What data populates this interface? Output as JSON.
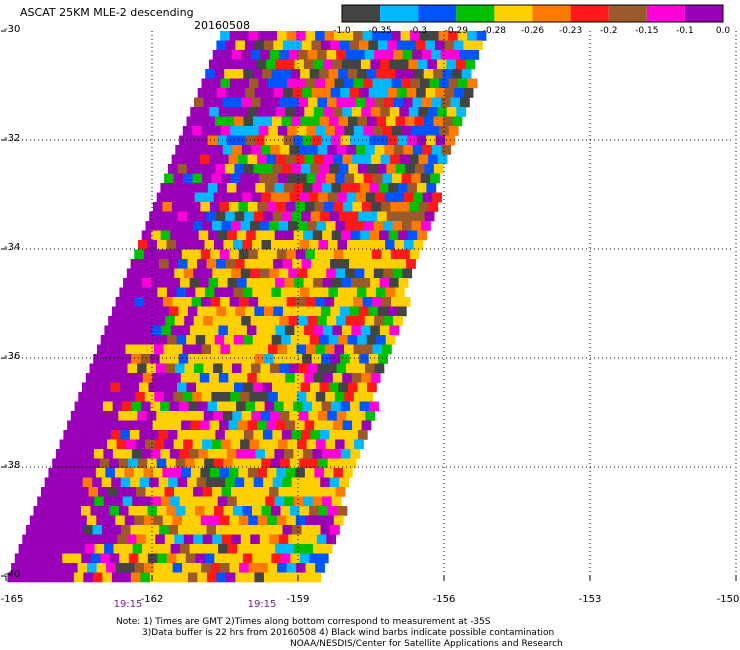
{
  "header": {
    "title": "ASCAT 25KM MLE-2 descending",
    "date": "20160508"
  },
  "colorbar": {
    "segments": [
      "#444444",
      "#00b8ff",
      "#0055ff",
      "#00c000",
      "#ffd000",
      "#ff7a00",
      "#ff1a1a",
      "#9c5a2a",
      "#ff00d8",
      "#9900b8"
    ],
    "tick_labels": [
      "-1.0",
      "-0.35",
      "-0.3",
      "-0.29",
      "-0.28",
      "-0.26",
      "-0.23",
      "-0.2",
      "-0.15",
      "-0.1",
      "0.0"
    ]
  },
  "axes": {
    "lat_labels": [
      "-30",
      "-32",
      "-34",
      "-36",
      "-38",
      "-40"
    ],
    "lon_labels": [
      "-165",
      "-162",
      "-159",
      "-156",
      "-153",
      "-150"
    ],
    "time_labels": [
      "19:15",
      "19:15"
    ]
  },
  "notes": {
    "line1": "Note: 1) Times are GMT 2)Times along bottom correspond to measurement at -35S",
    "line2": "3)Data buffer is 22 hrs from 20160508 4) Black wind barbs indicate possible contamination",
    "line3": "NOAA/NESDIS/Center for Satellite Applications and Research"
  },
  "map_data": {
    "swath_corners_deg": {
      "top_left": [
        -160.6,
        -30.0
      ],
      "top_right": [
        -155.2,
        -30.0
      ],
      "bottom_right": [
        -158.6,
        -40.0
      ],
      "bottom_left": [
        -165.0,
        -40.0
      ]
    },
    "dominant_value_west_edge": "0.0",
    "cell_size_km": 25
  }
}
